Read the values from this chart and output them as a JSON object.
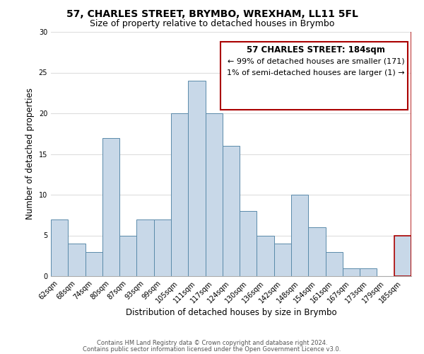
{
  "title": "57, CHARLES STREET, BRYMBO, WREXHAM, LL11 5FL",
  "subtitle": "Size of property relative to detached houses in Brymbo",
  "xlabel": "Distribution of detached houses by size in Brymbo",
  "ylabel": "Number of detached properties",
  "bar_labels": [
    "62sqm",
    "68sqm",
    "74sqm",
    "80sqm",
    "87sqm",
    "93sqm",
    "99sqm",
    "105sqm",
    "111sqm",
    "117sqm",
    "124sqm",
    "130sqm",
    "136sqm",
    "142sqm",
    "148sqm",
    "154sqm",
    "161sqm",
    "167sqm",
    "173sqm",
    "179sqm",
    "185sqm"
  ],
  "bar_values": [
    7,
    4,
    3,
    17,
    5,
    7,
    7,
    20,
    24,
    20,
    16,
    8,
    5,
    4,
    10,
    6,
    3,
    1,
    1,
    0,
    5
  ],
  "bar_color": "#c8d8e8",
  "bar_edge_color": "#5a8aaa",
  "highlight_bar_index": 20,
  "highlight_edge_color": "#aa0000",
  "ylim": [
    0,
    30
  ],
  "yticks": [
    0,
    5,
    10,
    15,
    20,
    25,
    30
  ],
  "annotation_title": "57 CHARLES STREET: 184sqm",
  "annotation_line1": "← 99% of detached houses are smaller (171)",
  "annotation_line2": "1% of semi-detached houses are larger (1) →",
  "annotation_box_color": "#ffffff",
  "annotation_border_color": "#aa0000",
  "footer_line1": "Contains HM Land Registry data © Crown copyright and database right 2024.",
  "footer_line2": "Contains public sector information licensed under the Open Government Licence v3.0.",
  "title_fontsize": 10,
  "subtitle_fontsize": 9,
  "axis_label_fontsize": 8.5,
  "tick_fontsize": 7,
  "annotation_title_fontsize": 8.5,
  "annotation_text_fontsize": 8,
  "footer_fontsize": 6,
  "background_color": "#ffffff",
  "grid_color": "#dddddd"
}
